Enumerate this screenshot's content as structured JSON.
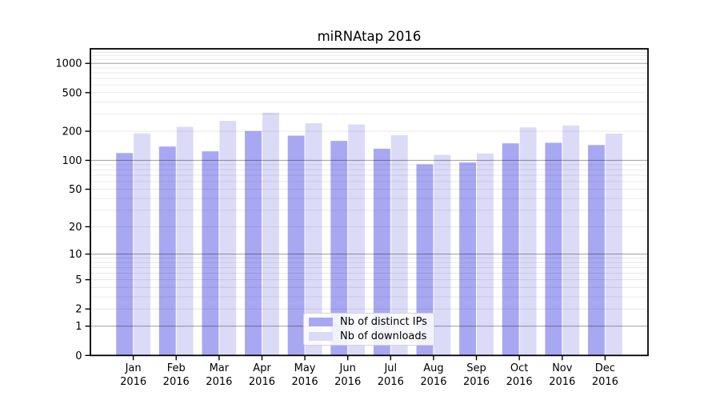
{
  "chart_data": {
    "type": "bar",
    "title": "miRNAtap 2016",
    "year_label": "2016",
    "categories": [
      "Jan",
      "Feb",
      "Mar",
      "Apr",
      "May",
      "Jun",
      "Jul",
      "Aug",
      "Sep",
      "Oct",
      "Nov",
      "Dec"
    ],
    "series": [
      {
        "name": "Nb of distinct IPs",
        "color": "#a8a8f2",
        "values": [
          119,
          139,
          124,
          201,
          180,
          159,
          132,
          91,
          95,
          150,
          152,
          144
        ]
      },
      {
        "name": "Nb of downloads",
        "color": "#dbdbf8",
        "values": [
          190,
          222,
          256,
          311,
          242,
          235,
          182,
          114,
          118,
          219,
          229,
          189
        ]
      }
    ],
    "y_axis": {
      "scale": "log1p",
      "tick_values": [
        0,
        1,
        2,
        5,
        10,
        20,
        50,
        100,
        200,
        500,
        1000
      ],
      "minor_grid_values": [
        2,
        3,
        4,
        5,
        6,
        7,
        8,
        9,
        20,
        30,
        40,
        50,
        60,
        70,
        80,
        90,
        200,
        300,
        400,
        500,
        600,
        700,
        800,
        900,
        1100,
        1200,
        1300
      ],
      "major_grid_values": [
        1,
        10,
        100,
        1000
      ],
      "max": 1412
    },
    "grid": true,
    "legend_position": "bottom-center",
    "colors": {
      "major_grid": "#a8a8a8",
      "minor_grid": "#e6e6e6",
      "spine": "#000000",
      "text": "#000000"
    }
  }
}
